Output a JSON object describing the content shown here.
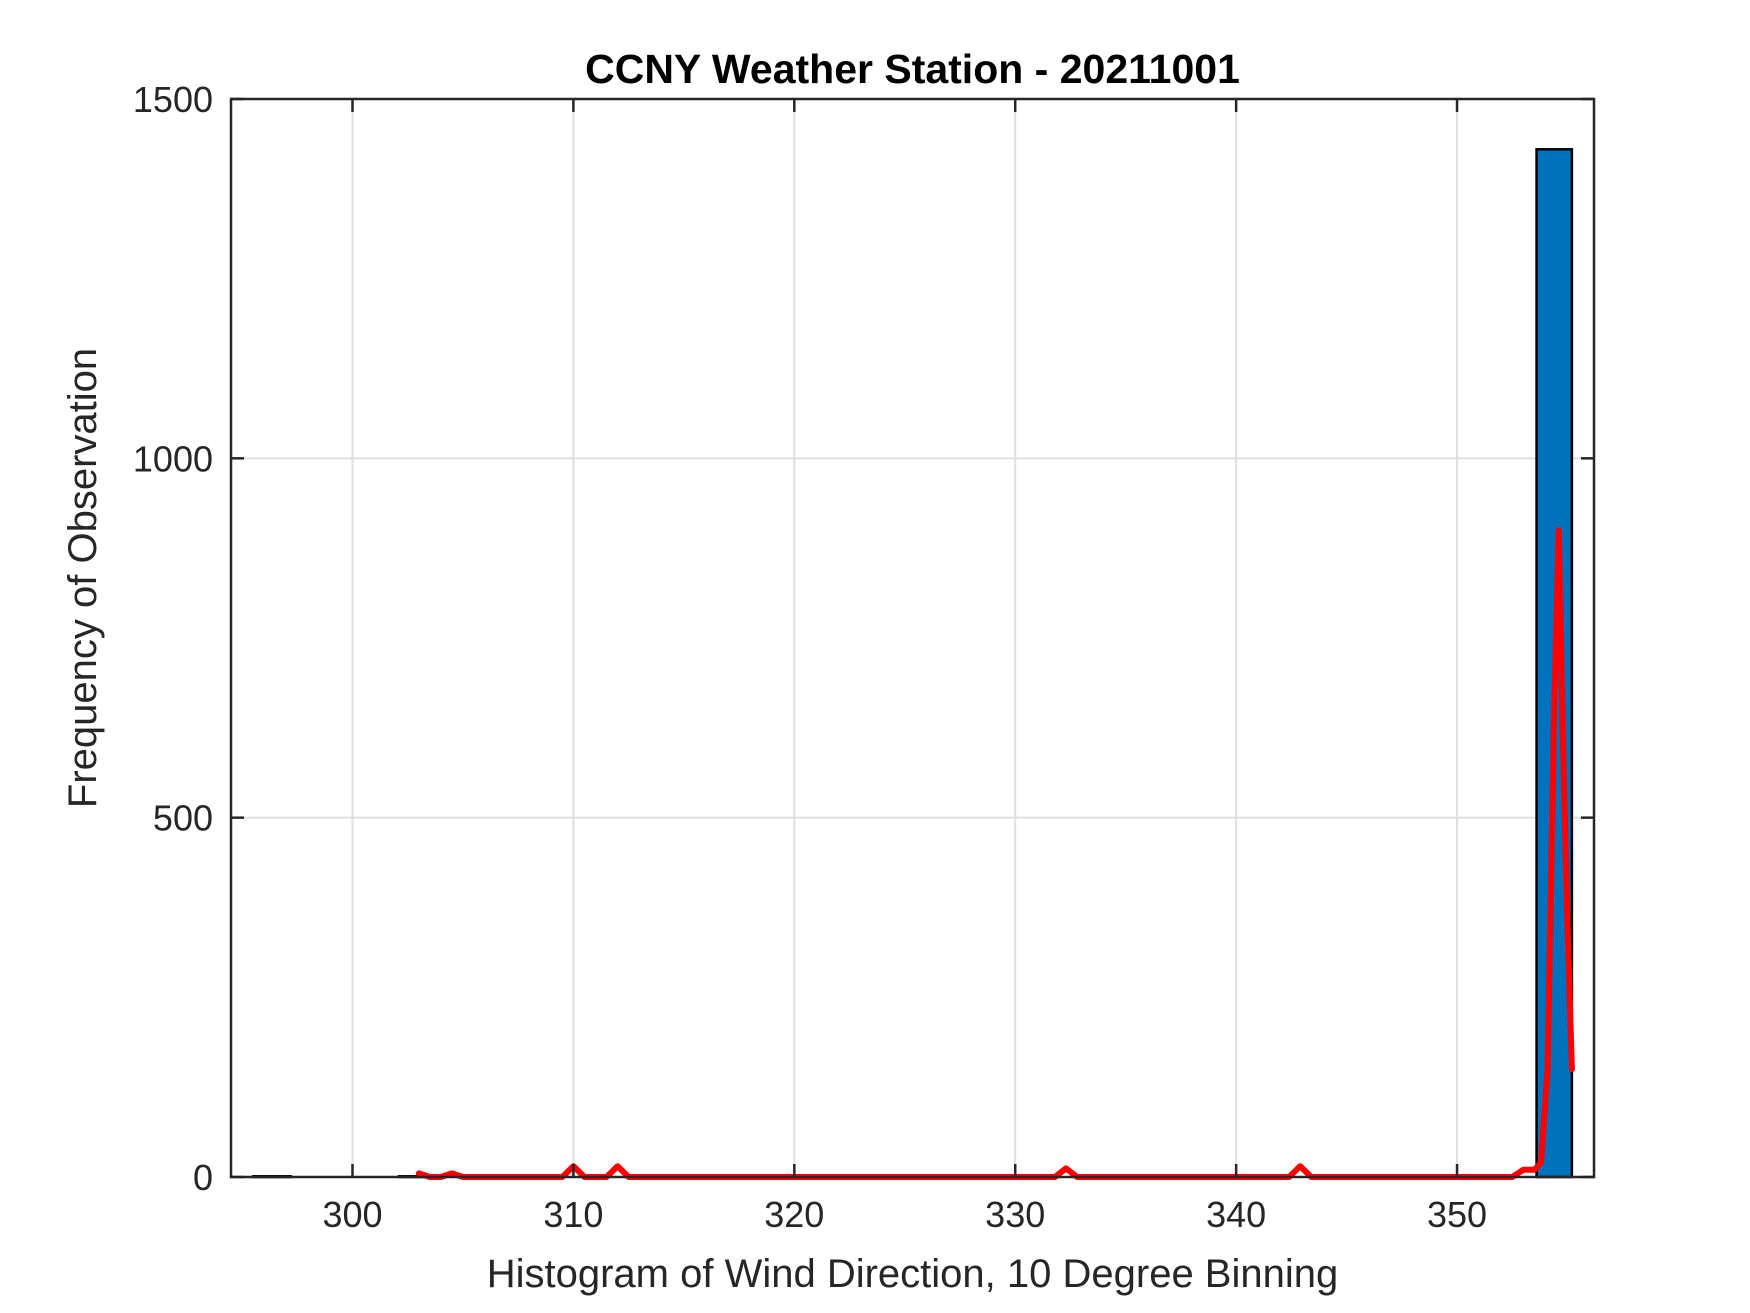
{
  "chart_data": {
    "type": "bar",
    "title": "CCNY Weather Station - 20211001",
    "xlabel": "Histogram of Wind Direction, 10 Degree Binning",
    "ylabel": "Frequency of Observation",
    "xlim": [
      294.5,
      356.2
    ],
    "ylim": [
      0,
      1500
    ],
    "x_ticks": [
      300,
      310,
      320,
      330,
      340,
      350
    ],
    "y_ticks": [
      0,
      500,
      1000,
      1500
    ],
    "grid": true,
    "colors": {
      "bar_fill": "#0072BD",
      "bar_edge": "#000000",
      "line": "#FF0000",
      "grid": "#DFDFDF"
    },
    "bars": [
      {
        "x0": 295.5,
        "x1": 297.2,
        "value": 1
      },
      {
        "x0": 302.1,
        "x1": 303.3,
        "value": 1
      },
      {
        "x0": 353.6,
        "x1": 355.2,
        "value": 1430
      }
    ],
    "series": [
      {
        "type": "line",
        "x": [
          303.0,
          303.5,
          304.0,
          304.5,
          305.0,
          306.0,
          307.0,
          308.0,
          309.0,
          309.5,
          310.0,
          310.5,
          311.0,
          311.5,
          312.0,
          312.5,
          313.0,
          320.0,
          330.0,
          331.8,
          332.3,
          332.8,
          333.3,
          340.0,
          342.4,
          342.9,
          343.4,
          344.0,
          350.0,
          352.0,
          352.5,
          353.0,
          353.5,
          353.8,
          354.1,
          354.4,
          354.6,
          354.8,
          355.0,
          355.2
        ],
        "y": [
          5,
          0,
          0,
          5,
          0,
          0,
          0,
          0,
          0,
          0,
          15,
          0,
          0,
          0,
          15,
          0,
          0,
          0,
          0,
          0,
          12,
          0,
          0,
          0,
          0,
          15,
          0,
          0,
          0,
          0,
          0,
          10,
          10,
          20,
          150,
          650,
          900,
          600,
          350,
          150
        ]
      }
    ]
  }
}
